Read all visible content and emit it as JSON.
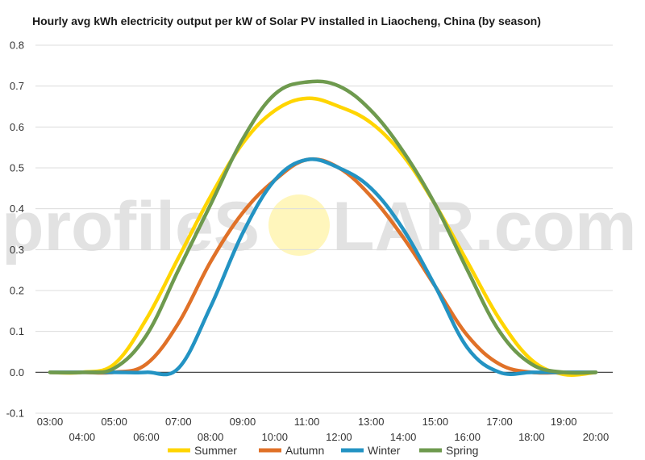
{
  "chart_data": {
    "type": "line",
    "title": "Hourly avg kWh electricity output per kW of Solar PV installed in Liaocheng, China (by season)",
    "xlabel": "",
    "ylabel": "",
    "ylim": [
      -0.1,
      0.8
    ],
    "yticks": [
      -0.1,
      0.0,
      0.1,
      0.2,
      0.3,
      0.4,
      0.5,
      0.6,
      0.7,
      0.8
    ],
    "ytick_labels": [
      "-0.1",
      "0.0",
      "0.1",
      "0.2",
      "0.3",
      "0.4",
      "0.5",
      "0.6",
      "0.7",
      "0.8"
    ],
    "xlim": [
      3,
      20
    ],
    "x_tick_labels": [
      "03:00",
      "04:00",
      "05:00",
      "06:00",
      "07:00",
      "08:00",
      "09:00",
      "10:00",
      "11:00",
      "12:00",
      "13:00",
      "14:00",
      "15:00",
      "16:00",
      "17:00",
      "18:00",
      "19:00",
      "20:00"
    ],
    "x": [
      3,
      4,
      5,
      6,
      7,
      8,
      9,
      10,
      11,
      12,
      13,
      14,
      15,
      16,
      17,
      18,
      19,
      20
    ],
    "grid": true,
    "legend": "bottom",
    "series": [
      {
        "name": "Summer",
        "color": "#FFD500",
        "values": [
          0.0,
          0.0,
          0.02,
          0.13,
          0.28,
          0.43,
          0.56,
          0.64,
          0.67,
          0.65,
          0.61,
          0.53,
          0.41,
          0.27,
          0.13,
          0.03,
          -0.005,
          0.0
        ]
      },
      {
        "name": "Autumn",
        "color": "#E07128",
        "values": [
          0.0,
          0.0,
          0.0,
          0.02,
          0.12,
          0.27,
          0.39,
          0.47,
          0.52,
          0.5,
          0.43,
          0.33,
          0.21,
          0.09,
          0.02,
          0.0,
          0.0,
          0.0
        ]
      },
      {
        "name": "Winter",
        "color": "#2393C3",
        "values": [
          0.0,
          0.0,
          0.0,
          0.0,
          0.01,
          0.16,
          0.34,
          0.47,
          0.52,
          0.5,
          0.45,
          0.35,
          0.21,
          0.06,
          0.0,
          0.0,
          0.0,
          0.0
        ]
      },
      {
        "name": "Spring",
        "color": "#6E9A4E",
        "values": [
          0.0,
          0.0,
          0.01,
          0.09,
          0.25,
          0.41,
          0.57,
          0.68,
          0.71,
          0.7,
          0.64,
          0.54,
          0.41,
          0.25,
          0.1,
          0.02,
          0.0,
          0.0
        ]
      }
    ]
  },
  "watermark": {
    "text_left": "profileS",
    "text_right": "LAR.com",
    "sun_color": "#FFF4B0"
  }
}
